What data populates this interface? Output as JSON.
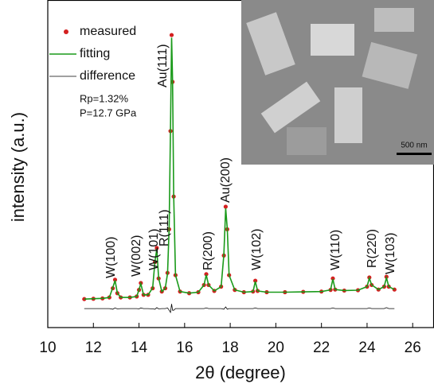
{
  "chart_data": {
    "type": "line",
    "xlabel": "2θ (degree)",
    "ylabel": "intensity (a.u.)",
    "xlim": [
      10,
      26.9
    ],
    "ylim": [
      0,
      100
    ],
    "xticks": [
      10,
      12,
      14,
      16,
      18,
      20,
      22,
      24,
      26
    ],
    "x": [
      11.6,
      12.0,
      12.4,
      12.7,
      12.85,
      12.95,
      13.05,
      13.2,
      13.6,
      13.9,
      14.0,
      14.08,
      14.2,
      14.4,
      14.6,
      14.7,
      14.78,
      14.86,
      15.0,
      15.15,
      15.25,
      15.32,
      15.38,
      15.43,
      15.47,
      15.52,
      15.6,
      15.8,
      16.2,
      16.6,
      16.85,
      16.95,
      17.05,
      17.3,
      17.6,
      17.72,
      17.8,
      17.87,
      17.95,
      18.2,
      18.6,
      19.0,
      19.1,
      19.2,
      19.6,
      20.4,
      21.2,
      22.0,
      22.4,
      22.5,
      22.6,
      23.0,
      23.6,
      24.0,
      24.1,
      24.2,
      24.5,
      24.75,
      24.85,
      24.95,
      25.2
    ],
    "series": [
      {
        "name": "measured",
        "color": "#d42020",
        "style": "dots",
        "values": [
          8.7,
          8.8,
          8.9,
          9.2,
          12,
          14.6,
          10.5,
          9.2,
          9.2,
          9.5,
          11.5,
          13.6,
          10,
          10,
          12,
          20,
          24.3,
          15,
          11,
          12,
          16.7,
          30,
          60,
          89.3,
          75,
          40,
          16,
          11,
          10.5,
          10.8,
          13,
          16.3,
          13,
          11.2,
          12.5,
          22,
          36.9,
          30,
          16,
          11.5,
          10.8,
          11,
          14.3,
          11.2,
          10.8,
          10.8,
          10.9,
          11,
          11.5,
          15,
          11.6,
          11.3,
          11.4,
          12.5,
          15.3,
          13,
          11.6,
          12.5,
          15.5,
          12.5,
          11.6
        ]
      },
      {
        "name": "fitting",
        "color": "#1a9a1a",
        "style": "line",
        "values": [
          8.7,
          8.8,
          8.9,
          9.2,
          12.2,
          14.4,
          10.6,
          9.2,
          9.2,
          9.5,
          11.6,
          13.4,
          10,
          10,
          12.1,
          20.2,
          24,
          15.1,
          11,
          12,
          16.5,
          30.5,
          61,
          88.5,
          75.5,
          40.5,
          16,
          11,
          10.5,
          10.8,
          13,
          16.1,
          13,
          11.2,
          12.5,
          22.2,
          36.4,
          30.2,
          16,
          11.5,
          10.8,
          11,
          14.1,
          11.2,
          10.8,
          10.8,
          10.9,
          11,
          11.5,
          14.8,
          11.6,
          11.3,
          11.4,
          12.5,
          15.1,
          13,
          11.6,
          12.5,
          15.2,
          12.5,
          11.6
        ]
      },
      {
        "name": "difference",
        "color": "#000000",
        "style": "thin",
        "values": [
          5.8,
          5.8,
          5.8,
          5.8,
          5.6,
          6.0,
          5.7,
          5.8,
          5.8,
          5.8,
          5.7,
          6.0,
          5.8,
          5.8,
          5.7,
          5.6,
          6.1,
          5.7,
          5.8,
          5.8,
          6.0,
          5.3,
          4.6,
          7.2,
          5.3,
          5.3,
          5.8,
          5.8,
          5.8,
          5.8,
          5.8,
          6.0,
          5.8,
          5.8,
          5.8,
          5.6,
          6.3,
          5.6,
          5.8,
          5.8,
          5.8,
          5.8,
          6.0,
          5.8,
          5.8,
          5.8,
          5.8,
          5.8,
          5.8,
          6.0,
          5.8,
          5.8,
          5.8,
          5.8,
          6.0,
          5.8,
          5.8,
          5.8,
          6.1,
          5.8,
          5.8
        ]
      }
    ],
    "annotations": [
      "W(100)",
      "W(002)",
      "W(101)",
      "R(111)",
      "Au(111)",
      "R(200)",
      "Au(200)",
      "W(102)",
      "W(110)",
      "R(220)",
      "W(103)",
      "Rp=1.32%",
      "P=12.7 GPa"
    ],
    "inset": {
      "scale_label": "500 nm"
    },
    "legend": "upper left"
  }
}
